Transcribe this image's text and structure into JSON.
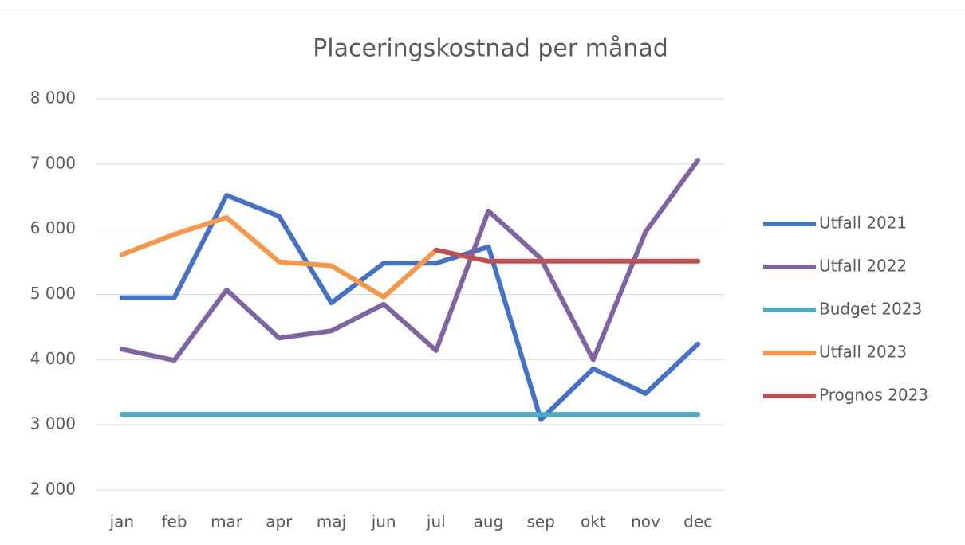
{
  "chart_data": {
    "type": "line",
    "title": "Placeringskostnad per månad",
    "categories": [
      "jan",
      "feb",
      "mar",
      "apr",
      "maj",
      "jun",
      "jul",
      "aug",
      "sep",
      "okt",
      "nov",
      "dec"
    ],
    "series": [
      {
        "name": "Utfall 2021",
        "color": "#4472c4",
        "values": [
          4950,
          4950,
          6520,
          6200,
          4870,
          5480,
          5480,
          5730,
          3080,
          3860,
          3480,
          4240
        ]
      },
      {
        "name": "Utfall 2022",
        "color": "#8064a2",
        "values": [
          4160,
          3990,
          5070,
          4330,
          4440,
          4850,
          4140,
          6280,
          5550,
          4000,
          5960,
          7060
        ]
      },
      {
        "name": "Budget 2023",
        "color": "#4bacc6",
        "values": [
          3160,
          3160,
          3160,
          3160,
          3160,
          3160,
          3160,
          3160,
          3160,
          3160,
          3160,
          3160
        ]
      },
      {
        "name": "Utfall 2023",
        "color": "#f79646",
        "values": [
          5610,
          5920,
          6180,
          5500,
          5440,
          4960,
          5680,
          null,
          null,
          null,
          null,
          null
        ]
      },
      {
        "name": "Prognos 2023",
        "color": "#c0504d",
        "values": [
          null,
          null,
          null,
          null,
          null,
          null,
          5680,
          5510,
          5510,
          5510,
          5510,
          5510
        ]
      }
    ],
    "ylim": [
      2000,
      8000
    ],
    "yticks": [
      {
        "value": 2000,
        "label": "2 000"
      },
      {
        "value": 3000,
        "label": "3 000"
      },
      {
        "value": 4000,
        "label": "4 000"
      },
      {
        "value": 5000,
        "label": "5 000"
      },
      {
        "value": 6000,
        "label": "6 000"
      },
      {
        "value": 7000,
        "label": "7 000"
      },
      {
        "value": 8000,
        "label": "8 000"
      }
    ],
    "grid": true,
    "legend": "right"
  }
}
